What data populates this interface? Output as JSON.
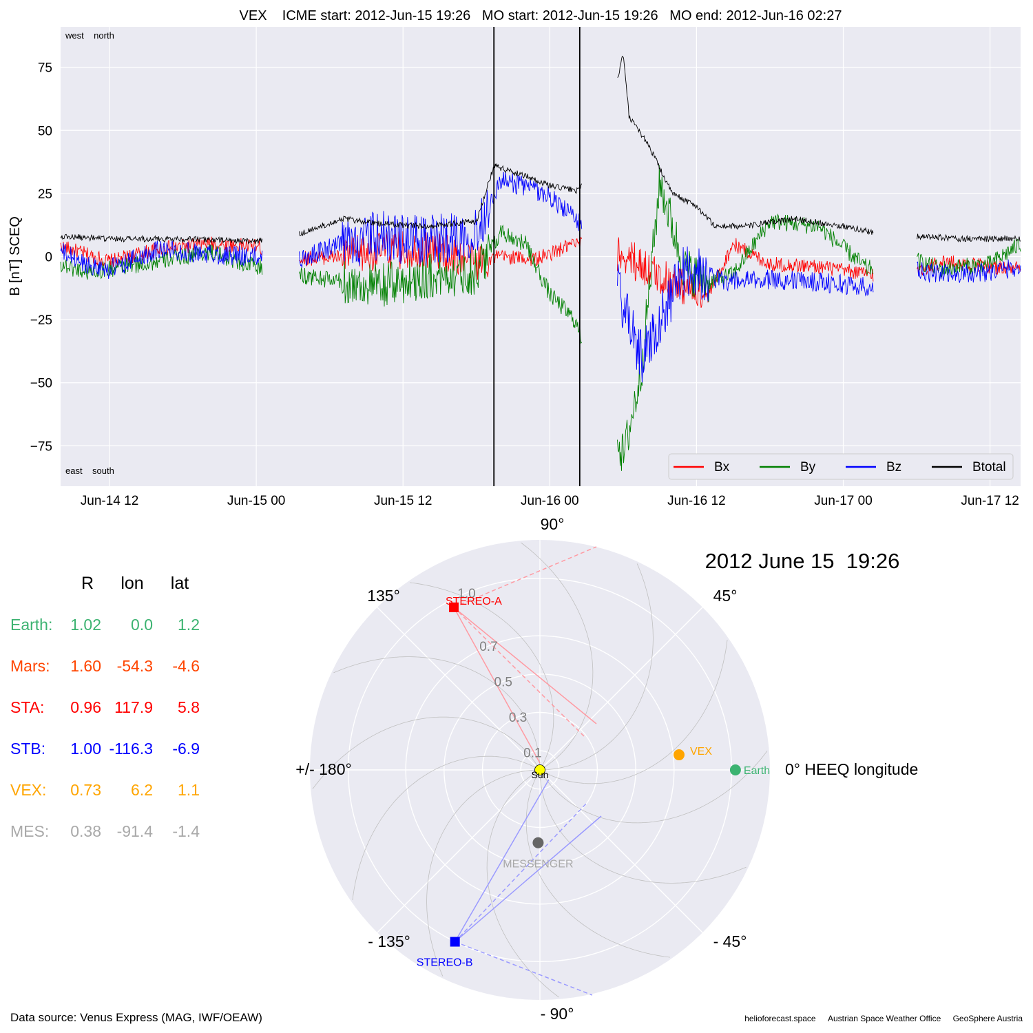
{
  "chart_data": [
    {
      "type": "line",
      "title": "VEX    ICME start: 2012-Jun-15 19:26   MO start: 2012-Jun-15 19:26   MO end: 2012-Jun-16 02:27",
      "ylabel": "B [nT] SCEQ",
      "xlabel": "",
      "x_ticks": [
        "Jun-14 12",
        "Jun-15 00",
        "Jun-15 12",
        "Jun-16 00",
        "Jun-16 12",
        "Jun-17 00",
        "Jun-17 12"
      ],
      "x_range": [
        "2012-06-14 08:00",
        "2012-06-17 14:30"
      ],
      "y_ticks": [
        75,
        50,
        25,
        0,
        -25,
        -50,
        -75
      ],
      "ylim": [
        -91,
        91
      ],
      "grid": true,
      "corner_labels": {
        "top": "west    north",
        "bottom": "east    south"
      },
      "vlines": [
        "2012-06-15 19:26",
        "2012-06-16 02:27"
      ],
      "legend_position": "lower-right",
      "colors": {
        "Bx": "#ff0000",
        "By": "#008000",
        "Bz": "#0000ff",
        "Btotal": "#000000"
      },
      "series": [
        {
          "name": "Bx",
          "x": [
            "2012-06-14 08:00",
            "2012-06-14 10:00",
            "2012-06-14 12:00",
            "2012-06-14 16:00",
            "2012-06-14 20:00",
            "2012-06-15 00:00",
            "2012-06-15 03:00",
            "2012-06-15 07:00",
            "2012-06-15 10:00",
            "2012-06-15 14:00",
            "2012-06-15 18:00",
            "2012-06-15 20:00",
            "2012-06-15 23:00",
            "2012-06-16 02:00",
            "2012-06-16 05:00",
            "2012-06-16 07:00",
            "2012-06-16 09:00",
            "2012-06-16 11:00",
            "2012-06-16 13:00",
            "2012-06-16 15:00",
            "2012-06-16 18:00",
            "2012-06-16 22:00",
            "2012-06-17 02:00",
            "2012-06-17 05:00",
            "2012-06-17 08:00",
            "2012-06-17 12:00",
            "2012-06-17 14:30"
          ],
          "y": [
            4,
            1,
            -2,
            3,
            5,
            4,
            -1,
            0,
            2,
            3,
            -2,
            0,
            -1,
            5,
            3,
            -2,
            -8,
            -12,
            -15,
            5,
            -3,
            -4,
            -7,
            -8,
            -2,
            -4,
            -5
          ],
          "gaps": [
            [
              "2012-06-15 00:30",
              "2012-06-15 03:30"
            ],
            [
              "2012-06-16 02:40",
              "2012-06-16 05:30"
            ],
            [
              "2012-06-17 02:30",
              "2012-06-17 06:00"
            ]
          ]
        },
        {
          "name": "By",
          "x": [
            "2012-06-14 08:00",
            "2012-06-14 10:00",
            "2012-06-14 12:00",
            "2012-06-14 16:00",
            "2012-06-14 20:00",
            "2012-06-15 00:00",
            "2012-06-15 03:00",
            "2012-06-15 07:00",
            "2012-06-15 10:00",
            "2012-06-15 14:00",
            "2012-06-15 18:00",
            "2012-06-15 20:00",
            "2012-06-15 22:00",
            "2012-06-16 00:00",
            "2012-06-16 02:00",
            "2012-06-16 05:00",
            "2012-06-16 06:00",
            "2012-06-16 07:30",
            "2012-06-16 09:00",
            "2012-06-16 11:00",
            "2012-06-16 13:00",
            "2012-06-16 15:00",
            "2012-06-16 18:00",
            "2012-06-16 22:00",
            "2012-06-17 02:00",
            "2012-06-17 05:00",
            "2012-06-17 08:00",
            "2012-06-17 12:00",
            "2012-06-17 14:30"
          ],
          "y": [
            -3,
            -6,
            -5,
            -2,
            2,
            -4,
            -7,
            -10,
            -12,
            -8,
            -6,
            10,
            5,
            -15,
            -25,
            -60,
            -80,
            -45,
            30,
            -5,
            -10,
            -7,
            14,
            12,
            -5,
            0,
            -5,
            -3,
            5
          ],
          "gaps": [
            [
              "2012-06-15 00:30",
              "2012-06-15 03:30"
            ],
            [
              "2012-06-16 02:40",
              "2012-06-16 05:30"
            ],
            [
              "2012-06-17 02:30",
              "2012-06-17 06:00"
            ]
          ]
        },
        {
          "name": "Bz",
          "x": [
            "2012-06-14 08:00",
            "2012-06-14 10:00",
            "2012-06-14 12:00",
            "2012-06-14 16:00",
            "2012-06-14 20:00",
            "2012-06-15 00:00",
            "2012-06-15 03:00",
            "2012-06-15 07:00",
            "2012-06-15 10:00",
            "2012-06-15 14:00",
            "2012-06-15 18:00",
            "2012-06-15 20:00",
            "2012-06-15 22:00",
            "2012-06-16 00:00",
            "2012-06-16 02:00",
            "2012-06-16 05:00",
            "2012-06-16 06:00",
            "2012-06-16 07:30",
            "2012-06-16 09:00",
            "2012-06-16 11:00",
            "2012-06-16 13:00",
            "2012-06-16 15:00",
            "2012-06-16 18:00",
            "2012-06-16 22:00",
            "2012-06-17 02:00",
            "2012-06-17 05:00",
            "2012-06-17 08:00",
            "2012-06-17 12:00",
            "2012-06-17 14:30"
          ],
          "y": [
            2,
            -3,
            -5,
            3,
            1,
            0,
            -2,
            5,
            8,
            6,
            10,
            30,
            28,
            24,
            15,
            5,
            -20,
            -40,
            -25,
            -5,
            -8,
            -10,
            -9,
            -10,
            -12,
            -5,
            -7,
            -6,
            -4
          ],
          "gaps": [
            [
              "2012-06-15 00:30",
              "2012-06-15 03:30"
            ],
            [
              "2012-06-16 02:40",
              "2012-06-16 05:30"
            ],
            [
              "2012-06-17 02:30",
              "2012-06-17 06:00"
            ]
          ]
        },
        {
          "name": "Btotal",
          "x": [
            "2012-06-14 08:00",
            "2012-06-14 12:00",
            "2012-06-14 18:00",
            "2012-06-15 00:00",
            "2012-06-15 03:00",
            "2012-06-15 07:00",
            "2012-06-15 10:00",
            "2012-06-15 14:00",
            "2012-06-15 18:00",
            "2012-06-15 19:26",
            "2012-06-15 22:00",
            "2012-06-16 00:00",
            "2012-06-16 02:27",
            "2012-06-16 05:30",
            "2012-06-16 06:00",
            "2012-06-16 06:30",
            "2012-06-16 08:00",
            "2012-06-16 09:00",
            "2012-06-16 10:00",
            "2012-06-16 12:00",
            "2012-06-16 13:30",
            "2012-06-16 16:00",
            "2012-06-16 20:00",
            "2012-06-17 00:00",
            "2012-06-17 02:00",
            "2012-06-17 06:00",
            "2012-06-17 10:00",
            "2012-06-17 14:30"
          ],
          "y": [
            8,
            7,
            7,
            6,
            8,
            15,
            13,
            12,
            14,
            36,
            32,
            28,
            26,
            70,
            80,
            55,
            45,
            35,
            25,
            20,
            12,
            12,
            15,
            12,
            10,
            8,
            7,
            7
          ],
          "gaps": [
            [
              "2012-06-15 00:30",
              "2012-06-15 03:30"
            ],
            [
              "2012-06-16 02:40",
              "2012-06-16 05:30"
            ],
            [
              "2012-06-17 02:30",
              "2012-06-17 06:00"
            ]
          ]
        }
      ]
    },
    {
      "type": "scatter",
      "title": "2012 June 15  19:26",
      "coordinate_system": "polar HEEQ longitude (deg) vs. radial distance (AU)",
      "angle_labels": {
        "0": "0° HEEQ longitude",
        "45": "45°",
        "90": "90°",
        "135": "135°",
        "180": "+/- 180°",
        "-135": "- 135°",
        "-90": "- 90°",
        "-45": "- 45°"
      },
      "radial_ticks": [
        "0.1",
        "0.3",
        "0.5",
        "0.7",
        "1.0"
      ],
      "rlim": [
        0,
        1.2
      ],
      "points": [
        {
          "name": "Sun",
          "label": "Sun",
          "r": 0.0,
          "lon": 0.0,
          "color": "#ffff00",
          "marker": "circle"
        },
        {
          "name": "Earth",
          "label": "Earth",
          "r": 1.02,
          "lon": 0.0,
          "color": "#3cb371",
          "marker": "circle"
        },
        {
          "name": "VEX",
          "label": "VEX",
          "r": 0.73,
          "lon": 6.2,
          "color": "#ffa500",
          "marker": "circle"
        },
        {
          "name": "STEREO-A",
          "label": "STEREO-A",
          "r": 0.96,
          "lon": 117.9,
          "color": "#ff0000",
          "marker": "square"
        },
        {
          "name": "STEREO-B",
          "label": "STEREO-B",
          "r": 1.0,
          "lon": -116.3,
          "color": "#0000ff",
          "marker": "square"
        },
        {
          "name": "MESSENGER",
          "label": "MESSENGER",
          "r": 0.38,
          "lon": -91.4,
          "color": "#666666",
          "marker": "circle"
        }
      ],
      "hi_fov_lines": [
        {
          "from": "STEREO-A",
          "style": "solid",
          "color": "#ff9aa2"
        },
        {
          "from": "STEREO-A",
          "style": "dashed",
          "color": "#ff9aa2"
        },
        {
          "from": "STEREO-B",
          "style": "solid",
          "color": "#9a9aff"
        },
        {
          "from": "STEREO-B",
          "style": "dashed",
          "color": "#9a9aff"
        }
      ]
    }
  ],
  "positions_table": {
    "headers": [
      "R",
      "lon",
      "lat"
    ],
    "rows": [
      {
        "label": "Earth:",
        "r": "1.02",
        "lon": "0.0",
        "lat": "1.2",
        "color": "#3cb371"
      },
      {
        "label": "Mars:",
        "r": "1.60",
        "lon": "-54.3",
        "lat": "-4.6",
        "color": "#ff4500"
      },
      {
        "label": "STA:",
        "r": "0.96",
        "lon": "117.9",
        "lat": "5.8",
        "color": "#ff0000"
      },
      {
        "label": "STB:",
        "r": "1.00",
        "lon": "-116.3",
        "lat": "-6.9",
        "color": "#0000ff"
      },
      {
        "label": "VEX:",
        "r": "0.73",
        "lon": "6.2",
        "lat": "1.1",
        "color": "#ffa500"
      },
      {
        "label": "MES:",
        "r": "0.38",
        "lon": "-91.4",
        "lat": "-1.4",
        "color": "#a9a9a9"
      }
    ]
  },
  "footer": {
    "source": "Data source: Venus Express (MAG, IWF/OEAW)",
    "credits": [
      "helioforecast.space",
      "Austrian Space Weather Office",
      "GeoSphere Austria"
    ]
  }
}
